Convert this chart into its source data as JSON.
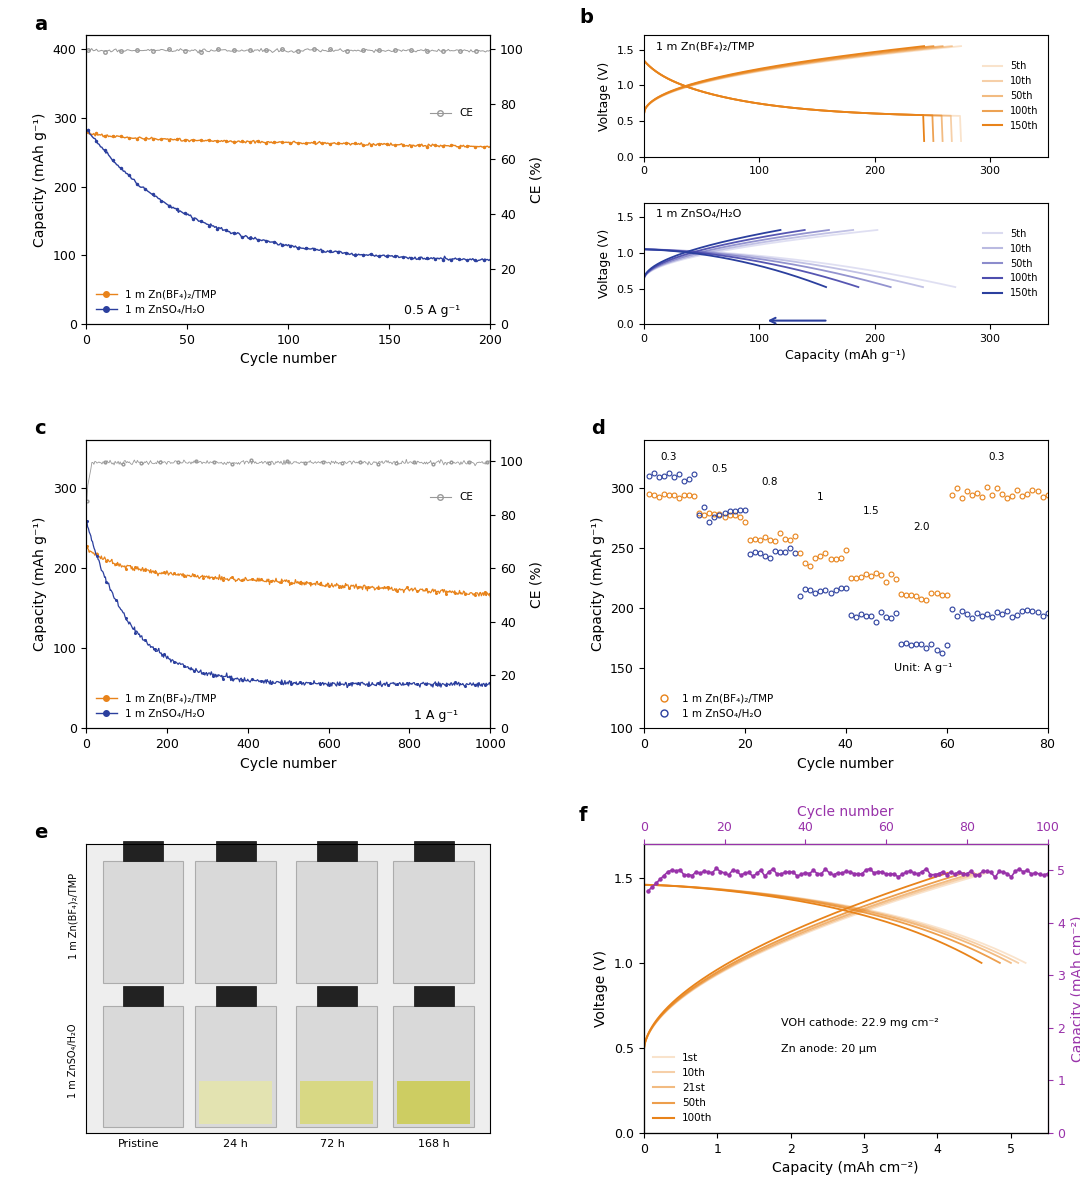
{
  "panel_a": {
    "xlabel": "Cycle number",
    "ylabel": "Capacity (mAh g⁻¹)",
    "ylabel2": "CE (%)",
    "xlim": [
      0,
      200
    ],
    "ylim": [
      0,
      420
    ],
    "ylim2": [
      0,
      105
    ],
    "annotation": "0.5 A g⁻¹",
    "legend1": "1 m Zn(BF₄)₂/TMP",
    "legend2": "1 m ZnSO₄/H₂O",
    "orange_color": "#E8831A",
    "blue_color": "#2B3F9E",
    "ce_color": "#999999"
  },
  "panel_b": {
    "xlabel": "Capacity (mAh g⁻¹)",
    "ylabel": "Voltage (V)",
    "xlim": [
      0,
      350
    ],
    "label_top": "1 m Zn(BF₄)₂/TMP",
    "label_bot": "1 m ZnSO₄/H₂O",
    "cycles": [
      "5th",
      "10th",
      "50th",
      "100th",
      "150th"
    ],
    "orange_color": "#E8831A",
    "blue_color": "#2B3F9E",
    "blue_colors": [
      "#AAAADD",
      "#8888CC",
      "#6666BB",
      "#4444AA",
      "#2B3F9E"
    ]
  },
  "panel_c": {
    "xlabel": "Cycle number",
    "ylabel": "Capacity (mAh g⁻¹)",
    "ylabel2": "CE (%)",
    "xlim": [
      0,
      1000
    ],
    "ylim": [
      0,
      360
    ],
    "ylim2": [
      0,
      108
    ],
    "annotation": "1 A g⁻¹",
    "legend1": "1 m Zn(BF₄)₂/TMP",
    "legend2": "1 m ZnSO₄/H₂O",
    "orange_color": "#E8831A",
    "blue_color": "#2B3F9E",
    "ce_color": "#999999"
  },
  "panel_d": {
    "xlabel": "Cycle number",
    "ylabel": "Capacity (mAh g⁻¹)",
    "xlim": [
      0,
      80
    ],
    "ylim": [
      100,
      340
    ],
    "legend1": "1 m Zn(BF₄)₂/TMP",
    "legend2": "1 m ZnSO₄/H₂O",
    "annotation": "Unit: A g⁻¹",
    "rates": [
      "0.3",
      "0.5",
      "0.8",
      "1",
      "1.5",
      "2.0",
      "0.3"
    ],
    "rate_x": [
      5,
      15,
      25,
      35,
      45,
      55,
      70
    ],
    "orange_color": "#E8831A",
    "blue_color": "#2B3F9E"
  },
  "panel_f": {
    "xlabel": "Capacity (mAh cm⁻²)",
    "ylabel": "Voltage (V)",
    "ylabel2": "Capacity (mAh cm⁻²)",
    "xlabel2": "Cycle number",
    "xlim": [
      0,
      5.5
    ],
    "ylim": [
      0,
      1.7
    ],
    "ylim2": [
      0,
      5.5
    ],
    "xlim2": [
      0,
      100
    ],
    "annotation1": "VOH cathode: 22.9 mg cm⁻²",
    "annotation2": "Zn anode: 20 μm",
    "cycles": [
      "1st",
      "10th",
      "21st",
      "50th",
      "100th"
    ],
    "orange_color": "#E8831A",
    "purple_color": "#9933AA"
  }
}
